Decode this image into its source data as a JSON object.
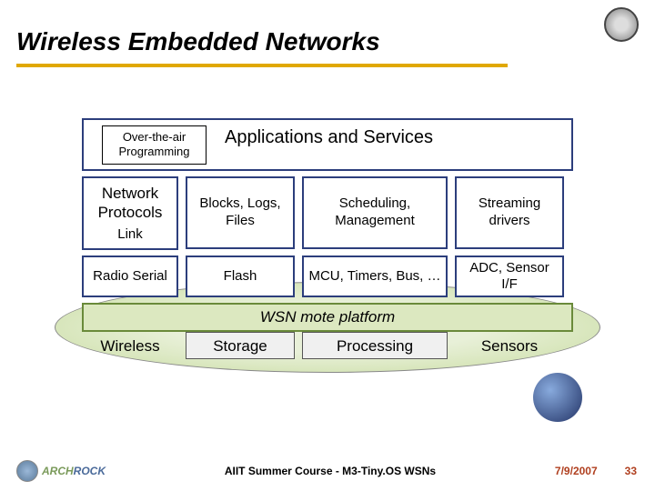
{
  "title": "Wireless Embedded Networks",
  "underline_color": "#e0a800",
  "diagram": {
    "apps_border": "#2c3e7c",
    "apps_bg": "#ffffff",
    "ota_label": "Over-the-air Programming",
    "apps_label": "Applications and Services",
    "cell_border": "#2c3e7c",
    "cell_bg": "#ffffff",
    "row2": {
      "c1a": "Network Protocols",
      "c1b": "Link",
      "c2": "Blocks, Logs, Files",
      "c3": "Scheduling, Management",
      "c4": "Streaming drivers"
    },
    "row3": {
      "c1": "Radio Serial",
      "c2": "Flash",
      "c3": "MCU, Timers, Bus, …",
      "c4": "ADC, Sensor I/F"
    },
    "wsn_border": "#6a8a3a",
    "wsn_bg": "#dce8c0",
    "wsn_label": "WSN mote platform",
    "row4": {
      "c1": "Wireless",
      "c2": "Storage",
      "c3": "Processing",
      "c4": "Sensors",
      "box_bg": "#f0f0f0"
    }
  },
  "footer": {
    "brand_text": "ARCHROCK",
    "brand_color1": "#7a9a5a",
    "brand_color2": "#4a6a9a",
    "center": "AIIT Summer Course - M3-Tiny.OS WSNs",
    "date": "7/9/2007",
    "page": "33"
  }
}
